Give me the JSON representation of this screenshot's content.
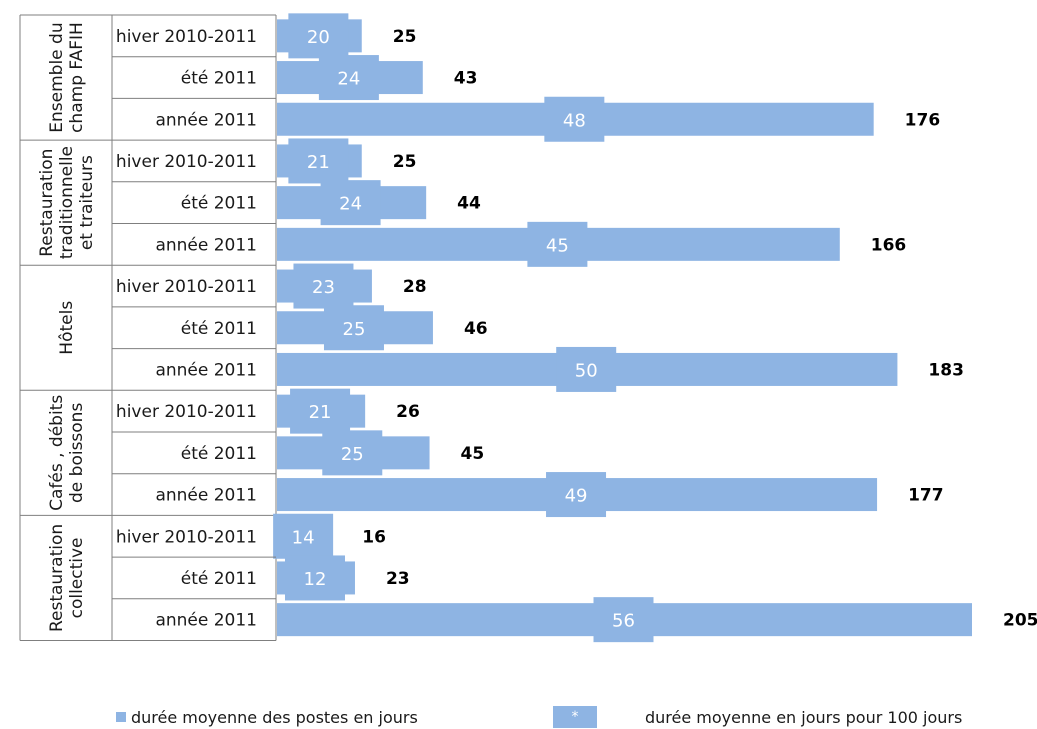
{
  "chart_data": {
    "type": "bar",
    "orientation": "horizontal",
    "groups": [
      {
        "label": [
          "Ensemble du",
          "champ FAFIH"
        ],
        "rows": [
          {
            "period": "hiver 2010-2011",
            "duration": 25,
            "per100": 20
          },
          {
            "period": "été 2011",
            "duration": 43,
            "per100": 24
          },
          {
            "period": "année 2011",
            "duration": 176,
            "per100": 48
          }
        ]
      },
      {
        "label": [
          "Restauration",
          "traditionnelle",
          "et traiteurs"
        ],
        "rows": [
          {
            "period": "hiver 2010-2011",
            "duration": 25,
            "per100": 21
          },
          {
            "period": "été 2011",
            "duration": 44,
            "per100": 24
          },
          {
            "period": "année 2011",
            "duration": 166,
            "per100": 45
          }
        ]
      },
      {
        "label": [
          "Hôtels"
        ],
        "rows": [
          {
            "period": "hiver 2010-2011",
            "duration": 28,
            "per100": 23
          },
          {
            "period": "été 2011",
            "duration": 46,
            "per100": 25
          },
          {
            "period": "année 2011",
            "duration": 183,
            "per100": 50
          }
        ]
      },
      {
        "label": [
          "Cafés , débits",
          "de boissons"
        ],
        "rows": [
          {
            "period": "hiver 2010-2011",
            "duration": 26,
            "per100": 21
          },
          {
            "period": "été 2011",
            "duration": 45,
            "per100": 25
          },
          {
            "period": "année 2011",
            "duration": 177,
            "per100": 49
          }
        ]
      },
      {
        "label": [
          "Restauration",
          "collective"
        ],
        "rows": [
          {
            "period": "hiver 2010-2011",
            "duration": 16,
            "per100": 14
          },
          {
            "period": "été 2011",
            "duration": 23,
            "per100": 12
          },
          {
            "period": "année 2011",
            "duration": 205,
            "per100": 56
          }
        ]
      }
    ],
    "xlim": [
      0,
      205
    ],
    "grid": false,
    "legend": {
      "position": "bottom",
      "series_bar": "durée moyenne des postes en jours",
      "marker_symbol": "*",
      "series_marker": "durée moyenne en jours pour 100 jours"
    },
    "colors": {
      "bar": "#8eb4e3",
      "marker": "#8eb4e3",
      "border": "#7f7f7f"
    }
  }
}
